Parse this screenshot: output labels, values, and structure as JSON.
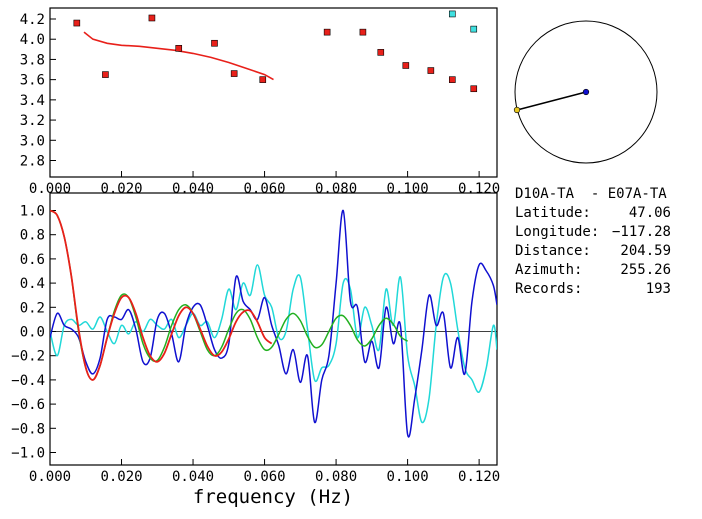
{
  "chart_data": [
    {
      "type": "scatter",
      "panel": "top",
      "xlim": [
        0.0,
        0.125
      ],
      "ylim": [
        2.7,
        4.25
      ],
      "x_ticks": [
        "0.000",
        "0.020",
        "0.040",
        "0.060",
        "0.080",
        "0.100",
        "0.120"
      ],
      "y_ticks": [
        "2.8",
        "3.0",
        "3.2",
        "3.4",
        "3.6",
        "3.8",
        "4.0",
        "4.2"
      ],
      "series": [
        {
          "color": "#e8201a",
          "marker": "square",
          "x": [
            0.0075,
            0.0155,
            0.0285,
            0.036,
            0.046,
            0.0515,
            0.0595,
            0.0775,
            0.0875,
            0.0925,
            0.0995,
            0.1065,
            0.1125,
            0.1185
          ],
          "y": [
            4.16,
            3.65,
            4.21,
            3.91,
            3.96,
            3.66,
            3.6,
            4.07,
            4.07,
            3.87,
            3.74,
            3.69,
            3.6,
            3.51
          ]
        },
        {
          "color": "#40e0e0",
          "marker": "square",
          "x": [
            0.1125,
            0.1185
          ],
          "y": [
            4.25,
            4.1
          ]
        }
      ],
      "fit_curve": {
        "color": "#e8201a",
        "x": [
          0.0095,
          0.012,
          0.016,
          0.02,
          0.025,
          0.03,
          0.035,
          0.04,
          0.045,
          0.05,
          0.055,
          0.06,
          0.0625
        ],
        "y": [
          4.07,
          4.0,
          3.96,
          3.94,
          3.93,
          3.91,
          3.89,
          3.86,
          3.82,
          3.77,
          3.71,
          3.65,
          3.6
        ]
      }
    },
    {
      "type": "line",
      "panel": "bottom",
      "xlabel": "frequency (Hz)",
      "xlim": [
        0.0,
        0.125
      ],
      "ylim": [
        -1.1,
        1.1
      ],
      "x_ticks": [
        "0.000",
        "0.020",
        "0.040",
        "0.060",
        "0.080",
        "0.100",
        "0.120"
      ],
      "y_ticks": [
        "1.0",
        "0.8",
        "0.6",
        "0.4",
        "0.2",
        "0.0",
        "−0.2",
        "−0.4",
        "−0.6",
        "−0.8",
        "−1.0"
      ],
      "zero_line": true,
      "series": [
        {
          "color": "#e8201a",
          "label_visible": false,
          "x": [
            0.0,
            0.002,
            0.004,
            0.006,
            0.008,
            0.01,
            0.012,
            0.014,
            0.016,
            0.018,
            0.02,
            0.022,
            0.024,
            0.026,
            0.028,
            0.03,
            0.032,
            0.034,
            0.036,
            0.038,
            0.04,
            0.042,
            0.044,
            0.046,
            0.048,
            0.05,
            0.052,
            0.054,
            0.056,
            0.058,
            0.06,
            0.062
          ],
          "y": [
            1.0,
            0.96,
            0.78,
            0.45,
            0.02,
            -0.3,
            -0.4,
            -0.28,
            -0.05,
            0.15,
            0.28,
            0.28,
            0.15,
            -0.05,
            -0.2,
            -0.25,
            -0.18,
            -0.02,
            0.13,
            0.2,
            0.15,
            0.02,
            -0.12,
            -0.2,
            -0.17,
            -0.06,
            0.08,
            0.16,
            0.17,
            0.08,
            -0.05,
            -0.1
          ]
        },
        {
          "color": "#22b020",
          "x": [
            0.0,
            0.002,
            0.004,
            0.006,
            0.008,
            0.01,
            0.012,
            0.014,
            0.016,
            0.018,
            0.02,
            0.022,
            0.024,
            0.026,
            0.028,
            0.03,
            0.032,
            0.034,
            0.036,
            0.038,
            0.04,
            0.042,
            0.044,
            0.046,
            0.048,
            0.05,
            0.052,
            0.054,
            0.056,
            0.058,
            0.06,
            0.062,
            0.064,
            0.066,
            0.068,
            0.07,
            0.072,
            0.074,
            0.076,
            0.078,
            0.08,
            0.082,
            0.084,
            0.086,
            0.088,
            0.09,
            0.092,
            0.094,
            0.096,
            0.098,
            0.1
          ],
          "y": [
            1.0,
            0.96,
            0.78,
            0.45,
            0.0,
            -0.3,
            -0.4,
            -0.28,
            -0.05,
            0.17,
            0.3,
            0.28,
            0.12,
            -0.1,
            -0.22,
            -0.24,
            -0.13,
            0.05,
            0.18,
            0.22,
            0.15,
            0.0,
            -0.15,
            -0.2,
            -0.13,
            0.02,
            0.15,
            0.18,
            0.1,
            -0.05,
            -0.15,
            -0.13,
            -0.02,
            0.1,
            0.15,
            0.09,
            -0.04,
            -0.13,
            -0.11,
            0.0,
            0.11,
            0.13,
            0.05,
            -0.07,
            -0.12,
            -0.06,
            0.05,
            0.11,
            0.06,
            -0.04,
            -0.08
          ]
        },
        {
          "color": "#1010d0",
          "x": [
            0.0,
            0.002,
            0.004,
            0.006,
            0.008,
            0.01,
            0.012,
            0.014,
            0.016,
            0.018,
            0.02,
            0.022,
            0.024,
            0.026,
            0.028,
            0.03,
            0.032,
            0.034,
            0.036,
            0.038,
            0.04,
            0.042,
            0.044,
            0.046,
            0.048,
            0.05,
            0.052,
            0.054,
            0.056,
            0.058,
            0.06,
            0.062,
            0.064,
            0.066,
            0.068,
            0.07,
            0.072,
            0.074,
            0.076,
            0.078,
            0.08,
            0.082,
            0.084,
            0.086,
            0.088,
            0.09,
            0.092,
            0.094,
            0.096,
            0.098,
            0.1,
            0.102,
            0.104,
            0.106,
            0.108,
            0.11,
            0.112,
            0.114,
            0.116,
            0.118,
            0.12,
            0.122,
            0.124,
            0.125
          ],
          "y": [
            -0.05,
            0.15,
            0.05,
            0.02,
            -0.05,
            -0.25,
            -0.35,
            -0.22,
            0.1,
            0.12,
            0.1,
            0.18,
            0.02,
            -0.25,
            -0.22,
            0.1,
            0.15,
            -0.02,
            -0.25,
            0.05,
            0.2,
            0.22,
            0.05,
            -0.15,
            -0.22,
            -0.1,
            0.45,
            0.25,
            0.18,
            0.1,
            0.28,
            0.05,
            -0.12,
            -0.35,
            -0.15,
            -0.42,
            -0.2,
            -0.75,
            -0.4,
            -0.2,
            0.4,
            1.0,
            0.25,
            0.2,
            -0.25,
            -0.08,
            -0.3,
            0.2,
            -0.1,
            0.05,
            -0.85,
            -0.55,
            -0.15,
            0.3,
            0.05,
            0.15,
            -0.3,
            -0.05,
            -0.35,
            0.25,
            0.55,
            0.5,
            0.38,
            0.22
          ]
        },
        {
          "color": "#20d8d8",
          "x": [
            0.0,
            0.002,
            0.004,
            0.006,
            0.008,
            0.01,
            0.012,
            0.014,
            0.016,
            0.018,
            0.02,
            0.022,
            0.024,
            0.026,
            0.028,
            0.03,
            0.032,
            0.034,
            0.036,
            0.038,
            0.04,
            0.042,
            0.044,
            0.046,
            0.048,
            0.05,
            0.052,
            0.054,
            0.056,
            0.058,
            0.06,
            0.062,
            0.064,
            0.066,
            0.068,
            0.07,
            0.072,
            0.074,
            0.076,
            0.078,
            0.08,
            0.082,
            0.084,
            0.086,
            0.088,
            0.09,
            0.092,
            0.094,
            0.096,
            0.098,
            0.1,
            0.102,
            0.104,
            0.106,
            0.108,
            0.11,
            0.112,
            0.114,
            0.116,
            0.118,
            0.12,
            0.122,
            0.124,
            0.125
          ],
          "y": [
            0.0,
            -0.2,
            0.05,
            0.1,
            0.05,
            0.08,
            0.02,
            0.12,
            0.0,
            -0.1,
            0.05,
            -0.02,
            0.08,
            0.0,
            0.1,
            0.05,
            0.02,
            0.1,
            -0.05,
            0.05,
            0.15,
            0.05,
            0.08,
            -0.05,
            0.1,
            0.35,
            0.18,
            0.4,
            0.3,
            0.55,
            0.3,
            0.2,
            -0.05,
            0.0,
            0.35,
            0.45,
            0.02,
            -0.4,
            -0.3,
            -0.28,
            -0.1,
            0.4,
            0.35,
            -0.05,
            0.2,
            0.05,
            -0.15,
            0.35,
            0.05,
            0.45,
            -0.2,
            -0.45,
            -0.75,
            -0.55,
            0.05,
            0.45,
            0.4,
            0.02,
            -0.3,
            -0.4,
            -0.5,
            -0.3,
            0.05,
            -0.15
          ]
        }
      ]
    }
  ],
  "map_inset": {
    "shape": "circle",
    "path_line_color": "#000000",
    "station_a_color": "#1010d0",
    "station_b_color": "#e8c820"
  },
  "info": {
    "title": "D10A-TA  - E07A-TA",
    "rows": [
      {
        "label": "Latitude:",
        "value": "47.06"
      },
      {
        "label": "Longitude:",
        "value": "−117.28"
      },
      {
        "label": "Distance:",
        "value": "204.59"
      },
      {
        "label": "Azimuth:",
        "value": "255.26"
      },
      {
        "label": "Records:",
        "value": "193"
      }
    ]
  }
}
